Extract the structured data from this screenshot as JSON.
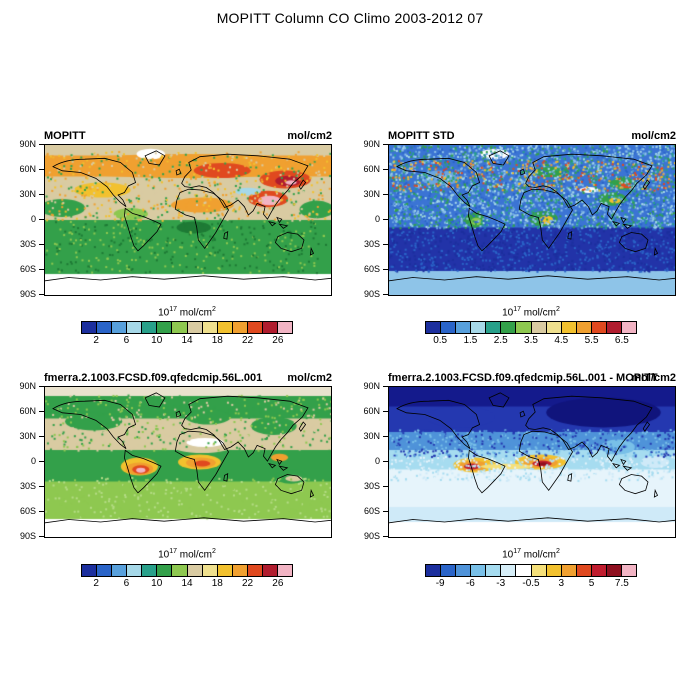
{
  "figure": {
    "title": "MOPITT Column CO Climo 2003-2012 07"
  },
  "lat_ticks": [
    "90N",
    "60N",
    "30N",
    "0",
    "30S",
    "60S",
    "90S"
  ],
  "units_label": {
    "base": "10",
    "exp": "17",
    "mid": " mol/cm",
    "exp2": "2"
  },
  "chart_data": {
    "type": "heatmap",
    "title": "MOPITT Column CO Climo 2003-2012 07",
    "projection": "global cylindrical lat-lon maps, 90N to 90S",
    "panels": [
      {
        "title": "MOPITT",
        "units": "mol/cm2",
        "colorbar": {
          "unit_label": "10^17 mol/cm^2",
          "colors": [
            "#1c2f9e",
            "#2a64c8",
            "#58a0dc",
            "#a6d8e8",
            "#28a08a",
            "#33a04a",
            "#8ec850",
            "#d9cba2",
            "#efe08e",
            "#f2c12e",
            "#f0a030",
            "#e0491f",
            "#b01c2e",
            "#f2b4c4"
          ],
          "tick_labels": [
            "2",
            "6",
            "10",
            "14",
            "18",
            "22",
            "26"
          ]
        },
        "field": {
          "seed": 11,
          "bands": [
            [
              0,
              0.07,
              "#d9cba2"
            ],
            [
              0.07,
              0.21,
              "#f0a030"
            ],
            [
              0.21,
              0.5,
              "#d9cba2"
            ],
            [
              0.5,
              0.86,
              "#33a04a"
            ],
            [
              0.86,
              1,
              "#ffffff"
            ]
          ],
          "blobs": [
            [
              0.5,
              0.14,
              0.52,
              0.08,
              "#f0a030"
            ],
            [
              0.2,
              0.3,
              0.1,
              0.05,
              "#f2c12e"
            ],
            [
              0.62,
              0.17,
              0.1,
              0.05,
              "#e0491f"
            ],
            [
              0.84,
              0.23,
              0.09,
              0.06,
              "#e0491f"
            ],
            [
              0.85,
              0.24,
              0.045,
              0.035,
              "#b01c2e"
            ],
            [
              0.86,
              0.25,
              0.02,
              0.015,
              "#f2b4c4"
            ],
            [
              0.78,
              0.36,
              0.07,
              0.055,
              "#e0491f"
            ],
            [
              0.785,
              0.37,
              0.04,
              0.032,
              "#f2b4c4"
            ],
            [
              0.55,
              0.4,
              0.11,
              0.05,
              "#f0a030"
            ],
            [
              0.37,
              0.06,
              0.05,
              0.035,
              "#ffffff"
            ],
            [
              0.71,
              0.31,
              0.045,
              0.025,
              "#a6d8e8"
            ],
            [
              0.06,
              0.42,
              0.08,
              0.06,
              "#33a04a"
            ],
            [
              0.95,
              0.43,
              0.06,
              0.06,
              "#33a04a"
            ],
            [
              0.3,
              0.46,
              0.06,
              0.04,
              "#8ec850"
            ],
            [
              0.52,
              0.55,
              0.06,
              0.04,
              "#1e7a35"
            ]
          ],
          "speckles": [
            {
              "n": 700,
              "y0": 0.04,
              "y1": 0.5,
              "colors": [
                "#f0a030",
                "#d9cba2",
                "#33a04a",
                "#f2c12e"
              ]
            },
            {
              "n": 350,
              "y0": 0.5,
              "y1": 0.85,
              "colors": [
                "#8ec850",
                "#1e7a35"
              ]
            }
          ]
        }
      },
      {
        "title": "MOPITT STD",
        "units": "mol/cm2",
        "colorbar": {
          "unit_label": "10^17 mol/cm^2",
          "colors": [
            "#1c2f9e",
            "#2a64c8",
            "#58a0dc",
            "#a6d8e8",
            "#28a08a",
            "#33a04a",
            "#8ec850",
            "#d9cba2",
            "#efe08e",
            "#f2c12e",
            "#f0a030",
            "#e0491f",
            "#b01c2e",
            "#f2b4c4"
          ],
          "tick_labels": [
            "0.5",
            "1.5",
            "2.5",
            "3.5",
            "4.5",
            "5.5",
            "6.5"
          ]
        },
        "field": {
          "seed": 23,
          "bands": [
            [
              0,
              0.55,
              "#3b74d4"
            ],
            [
              0.55,
              0.84,
              "#2233a8"
            ],
            [
              0.84,
              1,
              "#8ec4e8"
            ]
          ],
          "blobs": [
            [
              0.37,
              0.06,
              0.05,
              0.035,
              "#ffffff"
            ],
            [
              0.18,
              0.22,
              0.07,
              0.05,
              "#6aa6e0"
            ],
            [
              0.57,
              0.18,
              0.06,
              0.035,
              "#33a04a"
            ],
            [
              0.82,
              0.26,
              0.05,
              0.04,
              "#33a04a"
            ],
            [
              0.83,
              0.27,
              0.02,
              0.018,
              "#e0491f"
            ],
            [
              0.3,
              0.5,
              0.035,
              0.05,
              "#33a04a"
            ],
            [
              0.305,
              0.51,
              0.018,
              0.025,
              "#8ec850"
            ],
            [
              0.54,
              0.49,
              0.05,
              0.05,
              "#33a04a"
            ],
            [
              0.55,
              0.5,
              0.025,
              0.028,
              "#f2c12e"
            ],
            [
              0.78,
              0.36,
              0.05,
              0.045,
              "#33a04a"
            ],
            [
              0.79,
              0.37,
              0.02,
              0.02,
              "#f2c12e"
            ],
            [
              0.7,
              0.3,
              0.035,
              0.02,
              "#ffffff"
            ]
          ],
          "speckles": [
            {
              "n": 3000,
              "y0": 0.0,
              "y1": 0.55,
              "colors": [
                "#6aa6e0",
                "#8ec4e8",
                "#a6d8e8",
                "#28a08a",
                "#33a04a",
                "#2a64c8"
              ]
            },
            {
              "n": 300,
              "y0": 0.1,
              "y1": 0.3,
              "colors": [
                "#e0491f",
                "#f2c12e",
                "#f0a030"
              ]
            },
            {
              "n": 900,
              "y0": 0.55,
              "y1": 0.84,
              "colors": [
                "#2a64c8",
                "#1c2f9e"
              ]
            }
          ]
        }
      },
      {
        "title": "fmerra.2.1003.FCSD.f09.qfedcmip.56L.001",
        "units": "mol/cm2",
        "colorbar": {
          "unit_label": "10^17 mol/cm^2",
          "colors": [
            "#1c2f9e",
            "#2a64c8",
            "#58a0dc",
            "#a6d8e8",
            "#28a08a",
            "#33a04a",
            "#8ec850",
            "#d9cba2",
            "#efe08e",
            "#f2c12e",
            "#f0a030",
            "#e0491f",
            "#b01c2e",
            "#f2b4c4"
          ],
          "tick_labels": [
            "2",
            "6",
            "10",
            "14",
            "18",
            "22",
            "26"
          ]
        },
        "field": {
          "seed": 31,
          "bands": [
            [
              0,
              0.06,
              "#e9e2cd"
            ],
            [
              0.06,
              0.21,
              "#33a04a"
            ],
            [
              0.21,
              0.42,
              "#d9cba2"
            ],
            [
              0.42,
              0.63,
              "#33a04a"
            ],
            [
              0.63,
              0.88,
              "#8ec850"
            ],
            [
              0.88,
              1,
              "#ffffff"
            ]
          ],
          "blobs": [
            [
              0.17,
              0.23,
              0.1,
              0.06,
              "#33a04a"
            ],
            [
              0.57,
              0.2,
              0.08,
              0.05,
              "#33a04a"
            ],
            [
              0.8,
              0.26,
              0.08,
              0.06,
              "#33a04a"
            ],
            [
              0.55,
              0.39,
              0.11,
              0.05,
              "#d9cba2"
            ],
            [
              0.56,
              0.37,
              0.065,
              0.03,
              "#ffffff"
            ],
            [
              0.33,
              0.53,
              0.065,
              0.06,
              "#f2c12e"
            ],
            [
              0.33,
              0.545,
              0.048,
              0.042,
              "#f0a030"
            ],
            [
              0.335,
              0.55,
              0.03,
              0.028,
              "#e0491f"
            ],
            [
              0.335,
              0.555,
              0.016,
              0.016,
              "#f2b4c4"
            ],
            [
              0.54,
              0.5,
              0.075,
              0.05,
              "#f2c12e"
            ],
            [
              0.545,
              0.505,
              0.052,
              0.035,
              "#f0a030"
            ],
            [
              0.55,
              0.51,
              0.028,
              0.02,
              "#e0491f"
            ],
            [
              0.82,
              0.47,
              0.03,
              0.025,
              "#f0a030"
            ],
            [
              0.86,
              0.6,
              0.055,
              0.045,
              "#33a04a"
            ],
            [
              0.87,
              0.61,
              0.03,
              0.02,
              "#d9cba2"
            ]
          ],
          "speckles": [
            {
              "n": 500,
              "y0": 0.05,
              "y1": 0.42,
              "colors": [
                "#33a04a",
                "#d9cba2",
                "#8ec850"
              ]
            },
            {
              "n": 350,
              "y0": 0.6,
              "y1": 0.87,
              "colors": [
                "#8ec850",
                "#b5dc86"
              ]
            }
          ]
        }
      },
      {
        "title": "fmerra.2.1003.FCSD.f09.qfedcmip.56L.001 - MOPITT",
        "units": "mol/cm2",
        "colorbar": {
          "unit_label": "10^17 mol/cm^2",
          "colors": [
            "#1c2f9e",
            "#2a64c8",
            "#4f93d9",
            "#79c0e8",
            "#a6dcf0",
            "#d6eef8",
            "#ffffff",
            "#f5e07a",
            "#f2c12e",
            "#f0a030",
            "#e0491f",
            "#c01c2e",
            "#8e0f1f",
            "#f2b4c4"
          ],
          "tick_labels": [
            "-9",
            "-6",
            "-3",
            "-0.5",
            "3",
            "5",
            "7.5"
          ]
        },
        "field": {
          "seed": 47,
          "bands": [
            [
              0,
              0.13,
              "#141a8c"
            ],
            [
              0.13,
              0.3,
              "#2438b0"
            ],
            [
              0.3,
              0.42,
              "#4f93d9"
            ],
            [
              0.42,
              0.55,
              "#a6dcf0"
            ],
            [
              0.55,
              0.8,
              "#e6f4fb"
            ],
            [
              0.8,
              0.9,
              "#cfeaf8"
            ],
            [
              0.9,
              1,
              "#ffffff"
            ]
          ],
          "blobs": [
            [
              0.75,
              0.17,
              0.2,
              0.1,
              "#10147c"
            ],
            [
              0.25,
              0.2,
              0.12,
              0.07,
              "#2438b0"
            ],
            [
              0.3,
              0.52,
              0.075,
              0.05,
              "#f2c12e"
            ],
            [
              0.295,
              0.525,
              0.05,
              0.035,
              "#f0a030"
            ],
            [
              0.29,
              0.53,
              0.028,
              0.02,
              "#c01c2e"
            ],
            [
              0.53,
              0.5,
              0.09,
              0.05,
              "#f2c12e"
            ],
            [
              0.53,
              0.505,
              0.06,
              0.035,
              "#f0a030"
            ],
            [
              0.535,
              0.51,
              0.034,
              0.02,
              "#c01c2e"
            ],
            [
              0.54,
              0.512,
              0.014,
              0.01,
              "#8e0f1f"
            ],
            [
              0.41,
              0.53,
              0.09,
              0.018,
              "#f5e07a"
            ],
            [
              0.7,
              0.47,
              0.08,
              0.05,
              "#a6dcf0"
            ],
            [
              0.8,
              0.4,
              0.06,
              0.05,
              "#79c0e8"
            ],
            [
              0.93,
              0.5,
              0.05,
              0.04,
              "#cfeaf8"
            ]
          ],
          "speckles": [
            {
              "n": 600,
              "y0": 0.28,
              "y1": 0.46,
              "colors": [
                "#2438b0",
                "#4f93d9",
                "#79c0e8"
              ]
            },
            {
              "n": 500,
              "y0": 0.46,
              "y1": 0.62,
              "colors": [
                "#a6dcf0",
                "#e6f4fb",
                "#cfeaf8"
              ]
            }
          ]
        }
      }
    ]
  }
}
